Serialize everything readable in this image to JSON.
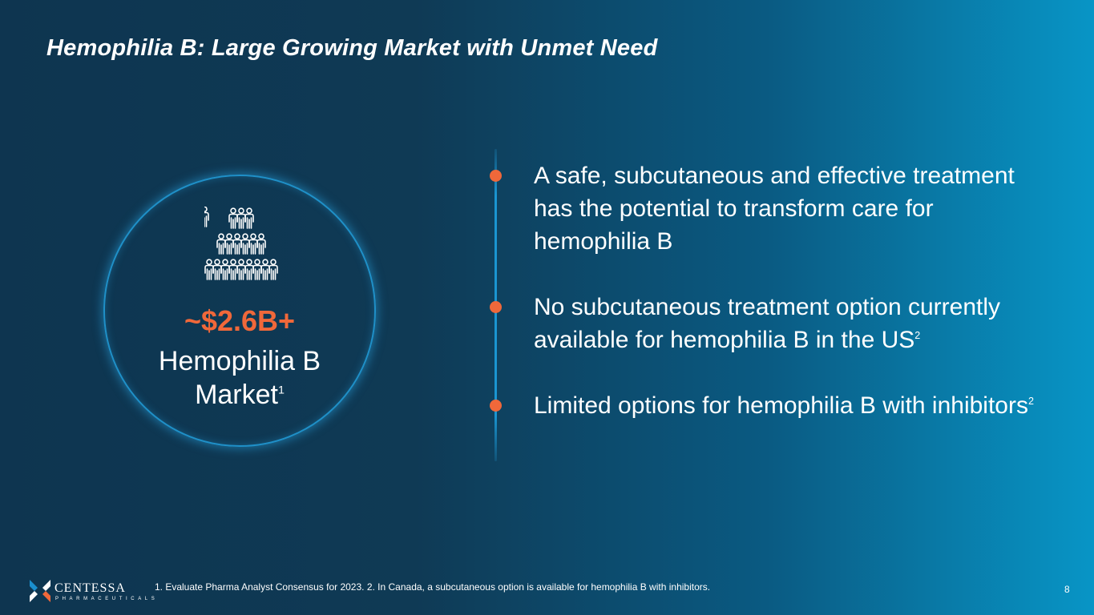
{
  "slide": {
    "title": "Hemophilia B:  Large Growing Market with Unmet Need",
    "page_number": "8"
  },
  "market": {
    "value": "~$2.6B+",
    "label_line1": "Hemophilia B",
    "label_line2": "Market",
    "label_sup": "1",
    "icon": "people-group-icon"
  },
  "bullets": [
    {
      "text": "A safe, subcutaneous and effective treatment has the potential to transform care for hemophilia B",
      "sup": ""
    },
    {
      "text": "No subcutaneous treatment option currently available for hemophilia B in the US",
      "sup": "2"
    },
    {
      "text": "Limited options for hemophilia B with inhibitors",
      "sup": "2"
    }
  ],
  "footer": {
    "logo_name": "CENTESSA",
    "logo_sub": "PHARMACEUTICALS",
    "footnote": "1. Evaluate Pharma Analyst Consensus for 2023.  2. In Canada, a subcutaneous option is available for hemophilia B with inhibitors."
  },
  "colors": {
    "accent": "#f0683a",
    "ring": "#1f90c8",
    "background_left": "#0e3550",
    "background_right": "#0895c6"
  }
}
